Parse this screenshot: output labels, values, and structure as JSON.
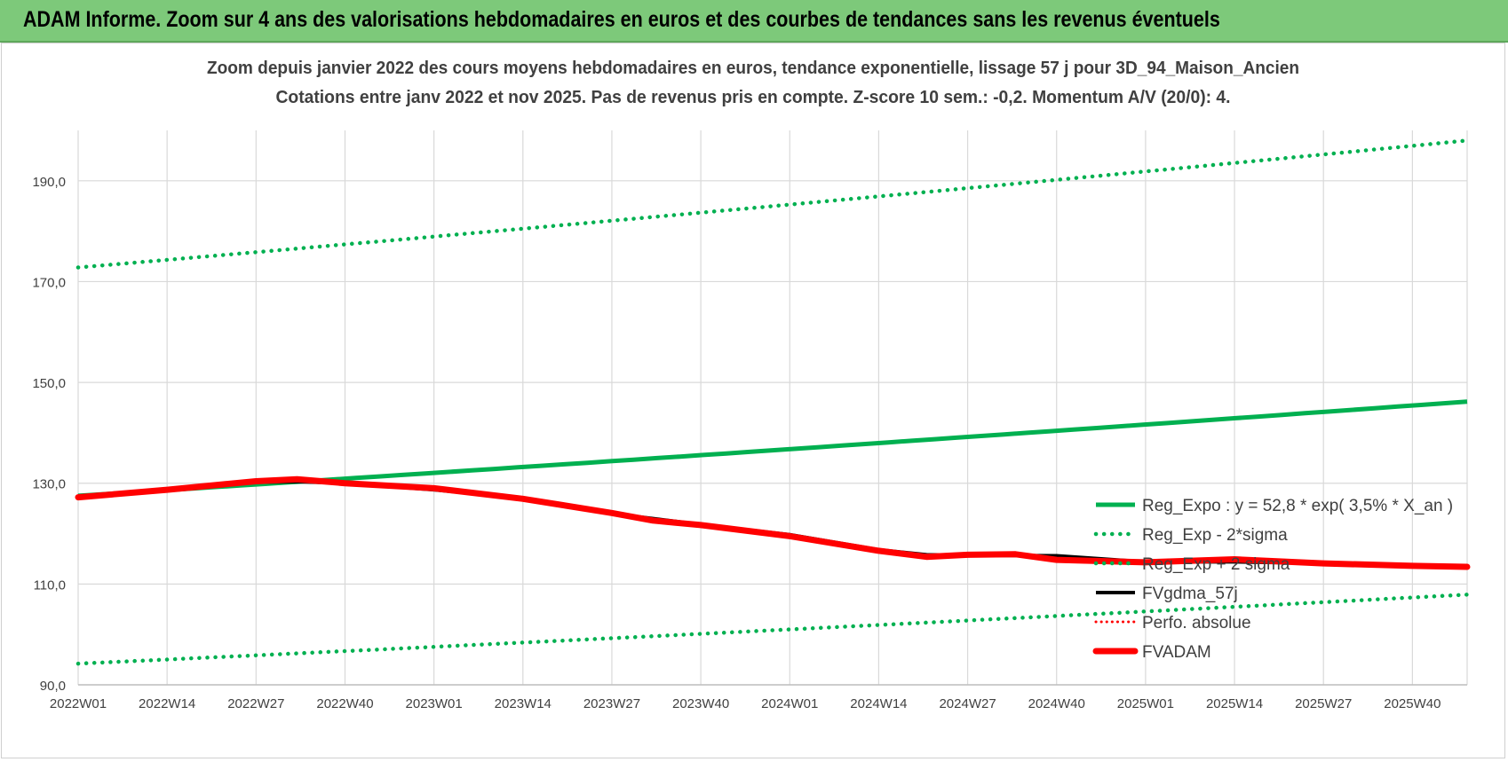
{
  "header": {
    "banner": "ADAM Informe. Zoom sur 4 ans des valorisations hebdomadaires en euros et des courbes de tendances sans les revenus éventuels"
  },
  "colors": {
    "banner_bg": "#7dc97a",
    "trend_green": "#00b050",
    "smoothed_black": "#000000",
    "perf_red_dotted": "#ff0000",
    "fvadam_red": "#ff0000",
    "grid": "#d9d9d9",
    "axis_text": "#404040"
  },
  "chart_data": {
    "type": "line",
    "title": "Zoom depuis janvier 2022 des cours moyens hebdomadaires en euros, tendance exponentielle, lissage 57 j pour 3D_94_Maison_Ancien",
    "subtitle": "Cotations entre janv 2022 et nov 2025. Pas de revenus pris en compte. Z-score 10 sem.: -0,2. Momentum A/V (20/0): 4.",
    "ylim": [
      90,
      200
    ],
    "yticks": [
      "90,0",
      "110,0",
      "130,0",
      "150,0",
      "170,0",
      "190,0"
    ],
    "ytick_values": [
      90,
      110,
      130,
      150,
      170,
      190
    ],
    "grid": true,
    "legend_position": "bottom-right",
    "x_categories": [
      "2022W01",
      "2022W14",
      "2022W27",
      "2022W40",
      "2023W01",
      "2023W14",
      "2023W27",
      "2023W40",
      "2024W01",
      "2024W14",
      "2024W27",
      "2024W40",
      "2025W01",
      "2025W14",
      "2025W27",
      "2025W40"
    ],
    "x_last_week_index": 203,
    "series": [
      {
        "name": "Reg_Expo : y = 52,8 * exp( 3,5% *  X_an )",
        "style": "solid-green",
        "x": [
          0,
          203
        ],
        "values": [
          127.5,
          146.2
        ],
        "interpolation": "exponential"
      },
      {
        "name": "Reg_Exp - 2*sigma",
        "style": "dotted-green",
        "x": [
          0,
          203
        ],
        "values": [
          94.2,
          107.9
        ],
        "interpolation": "exponential"
      },
      {
        "name": "Reg_Exp + 2 sigma",
        "style": "dotted-green",
        "x": [
          0,
          203
        ],
        "values": [
          172.8,
          198.0
        ],
        "interpolation": "exponential"
      },
      {
        "name": "FVgdma_57j",
        "style": "solid-black",
        "x": [
          0,
          13,
          26,
          32,
          39,
          52,
          65,
          78,
          91,
          104,
          117,
          124,
          130,
          143,
          156,
          169,
          182,
          195,
          203
        ],
        "values": [
          127.3,
          128.7,
          130.2,
          130.3,
          130.0,
          128.7,
          127.0,
          124.0,
          121.8,
          119.8,
          116.8,
          115.8,
          115.7,
          115.6,
          114.4,
          114.4,
          114.1,
          113.6,
          113.4
        ]
      },
      {
        "name": "Perfo. absolue",
        "style": "dotted-red",
        "x": [],
        "values": []
      },
      {
        "name": "FVADAM",
        "style": "thick-red",
        "x": [
          0,
          13,
          26,
          32,
          39,
          52,
          65,
          78,
          84,
          91,
          104,
          117,
          124,
          130,
          137,
          143,
          156,
          169,
          182,
          195,
          203
        ],
        "values": [
          127.2,
          128.7,
          130.4,
          130.8,
          130.0,
          129.0,
          126.9,
          124.1,
          122.6,
          121.7,
          119.5,
          116.6,
          115.4,
          115.8,
          115.9,
          114.8,
          114.3,
          114.9,
          114.1,
          113.6,
          113.4
        ]
      }
    ]
  }
}
